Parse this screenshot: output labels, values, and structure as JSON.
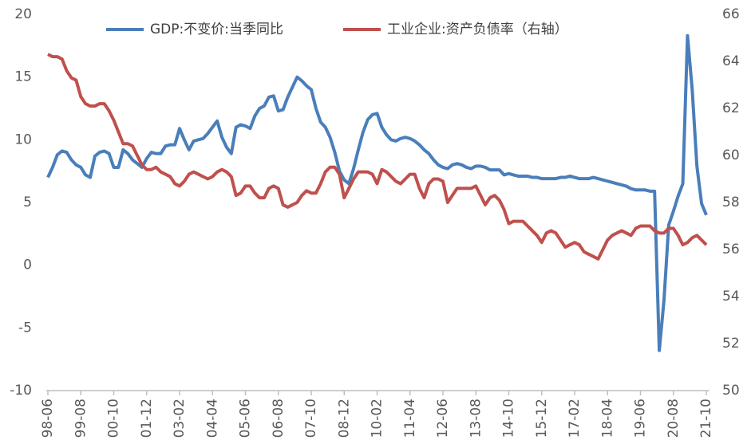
{
  "chart_data": {
    "type": "line",
    "categories": [
      "98-06",
      null,
      null,
      null,
      null,
      null,
      null,
      "99-08",
      null,
      null,
      null,
      null,
      null,
      null,
      "00-10",
      null,
      null,
      null,
      null,
      null,
      null,
      "01-12",
      null,
      null,
      null,
      null,
      null,
      null,
      "03-02",
      null,
      null,
      null,
      null,
      null,
      null,
      "04-04",
      null,
      null,
      null,
      null,
      null,
      null,
      "05-06",
      null,
      null,
      null,
      null,
      null,
      null,
      "06-08",
      null,
      null,
      null,
      null,
      null,
      null,
      "07-10",
      null,
      null,
      null,
      null,
      null,
      null,
      "08-12",
      null,
      null,
      null,
      null,
      null,
      null,
      "10-02",
      null,
      null,
      null,
      null,
      null,
      null,
      "11-04",
      null,
      null,
      null,
      null,
      null,
      null,
      "12-06",
      null,
      null,
      null,
      null,
      null,
      null,
      "13-08",
      null,
      null,
      null,
      null,
      null,
      null,
      "14-10",
      null,
      null,
      null,
      null,
      null,
      null,
      "15-12",
      null,
      null,
      null,
      null,
      null,
      null,
      "17-02",
      null,
      null,
      null,
      null,
      null,
      null,
      "18-04",
      null,
      null,
      null,
      null,
      null,
      null,
      "19-06",
      null,
      null,
      null,
      null,
      null,
      null,
      "20-08",
      null,
      null,
      null,
      null,
      null,
      null,
      "21-10"
    ],
    "series": [
      {
        "name": "GDP:不变价:当季同比",
        "color": "#4a7ebb",
        "values": [
          7.0,
          7.8,
          8.8,
          9.1,
          9.0,
          8.4,
          8.0,
          7.8,
          7.2,
          7.0,
          8.7,
          9.0,
          9.1,
          8.9,
          7.8,
          7.8,
          9.2,
          8.9,
          8.4,
          8.1,
          7.8,
          8.5,
          9.0,
          8.9,
          8.9,
          9.5,
          9.6,
          9.6,
          10.9,
          10.0,
          9.2,
          9.9,
          10.0,
          10.1,
          10.5,
          11.0,
          11.5,
          10.2,
          9.4,
          8.9,
          11.0,
          11.2,
          11.1,
          10.9,
          11.9,
          12.5,
          12.7,
          13.4,
          13.5,
          12.3,
          12.4,
          13.4,
          14.2,
          15.0,
          14.7,
          14.3,
          14.0,
          12.5,
          11.4,
          11.0,
          10.2,
          9.0,
          7.5,
          6.8,
          6.5,
          7.7,
          9.2,
          10.6,
          11.6,
          12.0,
          12.1,
          11.0,
          10.4,
          10.0,
          9.9,
          10.1,
          10.2,
          10.1,
          9.9,
          9.6,
          9.2,
          8.9,
          8.4,
          8.0,
          7.8,
          7.7,
          8.0,
          8.1,
          8.0,
          7.8,
          7.7,
          7.9,
          7.9,
          7.8,
          7.6,
          7.6,
          7.6,
          7.2,
          7.3,
          7.2,
          7.1,
          7.1,
          7.1,
          7.0,
          7.0,
          6.9,
          6.9,
          6.9,
          6.9,
          7.0,
          7.0,
          7.1,
          7.0,
          6.9,
          6.9,
          6.9,
          7.0,
          6.9,
          6.8,
          6.7,
          6.6,
          6.5,
          6.4,
          6.3,
          6.1,
          6.0,
          6.0,
          6.0,
          5.9,
          5.9,
          -6.8,
          -2.8,
          3.2,
          4.3,
          5.5,
          6.5,
          18.3,
          14.0,
          7.9,
          4.9,
          4.0
        ]
      },
      {
        "name": "工业企业:资产负债率（右轴）",
        "color": "#c0504d",
        "axis": "y2",
        "values": [
          64.3,
          64.2,
          64.2,
          64.1,
          63.6,
          63.3,
          63.2,
          62.5,
          62.2,
          62.1,
          62.1,
          62.2,
          62.2,
          61.9,
          61.5,
          61.0,
          60.5,
          60.5,
          60.4,
          60.0,
          59.6,
          59.4,
          59.4,
          59.5,
          59.3,
          59.2,
          59.1,
          58.8,
          58.7,
          58.9,
          59.2,
          59.3,
          59.2,
          59.1,
          59.0,
          59.1,
          59.3,
          59.4,
          59.3,
          59.1,
          58.3,
          58.4,
          58.7,
          58.7,
          58.4,
          58.2,
          58.2,
          58.6,
          58.7,
          58.6,
          57.9,
          57.8,
          57.9,
          58.0,
          58.3,
          58.5,
          58.4,
          58.4,
          58.8,
          59.3,
          59.5,
          59.5,
          59.2,
          58.2,
          58.6,
          59.0,
          59.3,
          59.3,
          59.3,
          59.2,
          58.8,
          59.4,
          59.3,
          59.1,
          58.9,
          58.8,
          59.0,
          59.2,
          59.2,
          58.6,
          58.2,
          58.8,
          59.0,
          59.0,
          58.9,
          58.0,
          58.3,
          58.6,
          58.6,
          58.6,
          58.6,
          58.7,
          58.3,
          57.9,
          58.2,
          58.3,
          58.1,
          57.7,
          57.1,
          57.2,
          57.2,
          57.2,
          57.0,
          56.8,
          56.6,
          56.3,
          56.7,
          56.8,
          56.7,
          56.4,
          56.1,
          56.2,
          56.3,
          56.2,
          55.9,
          55.8,
          55.7,
          55.6,
          56.0,
          56.4,
          56.6,
          56.7,
          56.8,
          56.7,
          56.6,
          56.9,
          57.0,
          57.0,
          57.0,
          56.8,
          56.7,
          56.7,
          56.9,
          56.9,
          56.6,
          56.2,
          56.3,
          56.5,
          56.6,
          56.4,
          56.2
        ]
      }
    ],
    "ylim": [
      -10,
      20
    ],
    "yticks": [
      -10,
      -5,
      0,
      5,
      10,
      15,
      20
    ],
    "y2lim": [
      50,
      66
    ],
    "y2ticks": [
      50,
      52,
      54,
      56,
      58,
      60,
      62,
      64,
      66
    ],
    "grid": false,
    "legend": "top"
  }
}
